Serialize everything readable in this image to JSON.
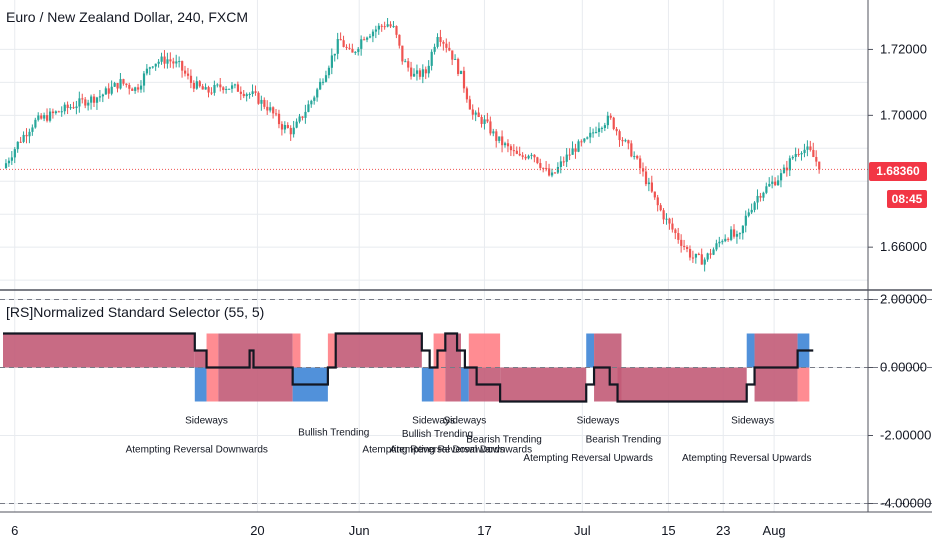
{
  "header": {
    "title": "Euro / New Zealand Dollar, 240, FXCM",
    "indicator_title": "[RS]Normalized Standard Selector (55, 5)"
  },
  "badges": {
    "last_price": "1.68360",
    "countdown": "08:45"
  },
  "colors": {
    "up": "#26a69a",
    "down": "#ef5350",
    "price_line": "#ef5350",
    "bull_zone": "#c25b77",
    "bear_zone": "#ff7f86",
    "blue_zone": "#3e85d6",
    "grid": "#e8ebef",
    "axis_text": "#131722",
    "badge": "#f23645"
  },
  "chart_data": [
    {
      "type": "candlestick",
      "title": "Euro / New Zealand Dollar, 240, FXCM",
      "xlim": [
        0,
        210
      ],
      "ylim": [
        1.647,
        1.735
      ],
      "y_ticks": [
        "1.72000",
        "1.70000",
        "1.66000"
      ],
      "x_ticks": [
        "6",
        "20",
        "Jun",
        "17",
        "Jul",
        "15",
        "23",
        "Aug"
      ],
      "last_price": 1.6836,
      "close_path": [
        [
          0,
          1.684
        ],
        [
          4,
          1.692
        ],
        [
          8,
          1.698
        ],
        [
          14,
          1.701
        ],
        [
          20,
          1.704
        ],
        [
          25,
          1.706
        ],
        [
          30,
          1.71
        ],
        [
          34,
          1.708
        ],
        [
          38,
          1.716
        ],
        [
          42,
          1.717
        ],
        [
          45,
          1.715
        ],
        [
          48,
          1.71
        ],
        [
          52,
          1.707
        ],
        [
          56,
          1.709
        ],
        [
          60,
          1.708
        ],
        [
          64,
          1.706
        ],
        [
          68,
          1.702
        ],
        [
          71,
          1.697
        ],
        [
          74,
          1.695
        ],
        [
          77,
          1.701
        ],
        [
          80,
          1.707
        ],
        [
          83,
          1.715
        ],
        [
          86,
          1.723
        ],
        [
          89,
          1.718
        ],
        [
          92,
          1.724
        ],
        [
          95,
          1.726
        ],
        [
          98,
          1.728
        ],
        [
          100,
          1.726
        ],
        [
          102,
          1.717
        ],
        [
          105,
          1.712
        ],
        [
          108,
          1.713
        ],
        [
          111,
          1.725
        ],
        [
          114,
          1.72
        ],
        [
          117,
          1.712
        ],
        [
          120,
          1.7
        ],
        [
          123,
          1.698
        ],
        [
          126,
          1.693
        ],
        [
          129,
          1.69
        ],
        [
          132,
          1.687
        ],
        [
          135,
          1.689
        ],
        [
          138,
          1.684
        ],
        [
          140,
          1.681
        ],
        [
          143,
          1.686
        ],
        [
          146,
          1.69
        ],
        [
          149,
          1.692
        ],
        [
          152,
          1.697
        ],
        [
          155,
          1.699
        ],
        [
          158,
          1.693
        ],
        [
          161,
          1.688
        ],
        [
          164,
          1.681
        ],
        [
          167,
          1.673
        ],
        [
          170,
          1.667
        ],
        [
          173,
          1.662
        ],
        [
          176,
          1.657
        ],
        [
          179,
          1.656
        ],
        [
          182,
          1.66
        ],
        [
          184,
          1.663
        ],
        [
          186,
          1.664
        ],
        [
          188,
          1.662
        ],
        [
          190,
          1.67
        ],
        [
          193,
          1.676
        ],
        [
          196,
          1.679
        ],
        [
          199,
          1.682
        ],
        [
          202,
          1.688
        ],
        [
          204,
          1.69
        ],
        [
          206,
          1.689
        ],
        [
          209,
          1.684
        ]
      ]
    },
    {
      "type": "step-area",
      "title": "[RS]Normalized Standard Selector (55, 5)",
      "ylim": [
        -4.25,
        2.25
      ],
      "y_ticks": [
        "2.00000",
        "0.00000",
        "-2.00000",
        "-4.00000"
      ],
      "levels": [
        2,
        0,
        -4
      ],
      "x_range": [
        0,
        210
      ],
      "value_steps": [
        [
          0,
          49,
          1
        ],
        [
          49,
          52,
          0.5
        ],
        [
          52,
          63,
          0
        ],
        [
          63,
          64,
          0.5
        ],
        [
          64,
          74,
          0
        ],
        [
          74,
          83,
          -0.5
        ],
        [
          83,
          85,
          0
        ],
        [
          85,
          107,
          1
        ],
        [
          107,
          109,
          0.5
        ],
        [
          109,
          111,
          0
        ],
        [
          111,
          113,
          0.5
        ],
        [
          113,
          116,
          1
        ],
        [
          116,
          118,
          0.5
        ],
        [
          118,
          121,
          0
        ],
        [
          121,
          127,
          -0.5
        ],
        [
          127,
          149,
          -1
        ],
        [
          149,
          151,
          -0.5
        ],
        [
          151,
          155,
          0
        ],
        [
          155,
          157,
          -0.5
        ],
        [
          157,
          190,
          -1
        ],
        [
          190,
          192,
          -0.5
        ],
        [
          192,
          203,
          0
        ],
        [
          203,
          206,
          0.5
        ],
        [
          206,
          207,
          0.5
        ]
      ],
      "zones": [
        [
          0,
          49,
          0,
          1,
          "bull"
        ],
        [
          49,
          52,
          0,
          0.5,
          "bull"
        ],
        [
          49,
          52,
          -1,
          0,
          "blue"
        ],
        [
          52,
          55,
          -1,
          1,
          "bear"
        ],
        [
          55,
          74,
          -1,
          1,
          "bull"
        ],
        [
          74,
          83,
          -1,
          0,
          "blue"
        ],
        [
          74,
          76,
          0,
          1,
          "bear"
        ],
        [
          83,
          85,
          0,
          1,
          "bear"
        ],
        [
          85,
          107,
          0,
          1,
          "bull"
        ],
        [
          107,
          110,
          -1,
          0,
          "blue"
        ],
        [
          110,
          113,
          -1,
          1,
          "bear"
        ],
        [
          113,
          117,
          -1,
          1,
          "bull"
        ],
        [
          117,
          119,
          -1,
          0,
          "blue"
        ],
        [
          119,
          127,
          0,
          1,
          "bear"
        ],
        [
          119,
          127,
          -1,
          0,
          "bull"
        ],
        [
          127,
          149,
          -1,
          0,
          "bull"
        ],
        [
          149,
          151,
          0,
          1,
          "blue"
        ],
        [
          151,
          158,
          -1,
          1,
          "bull"
        ],
        [
          157,
          190,
          -1,
          0,
          "bull"
        ],
        [
          190,
          192,
          0,
          1,
          "blue"
        ],
        [
          192,
          203,
          -1,
          1,
          "bull"
        ],
        [
          203,
          206,
          0,
          1,
          "blue"
        ],
        [
          203,
          206,
          -1,
          0,
          "bear"
        ]
      ],
      "annotations": [
        {
          "text": "Sideways",
          "x": 52,
          "y": -1.65
        },
        {
          "text": "Atempting Reversal Downwards",
          "x": 49.5,
          "y": -2.5
        },
        {
          "text": "Bullish Trending",
          "x": 84.5,
          "y": -2.0
        },
        {
          "text": "Sideways",
          "x": 110,
          "y": -1.65
        },
        {
          "text": "Sideways",
          "x": 118,
          "y": -1.65
        },
        {
          "text": "Bullish Trending",
          "x": 111,
          "y": -2.05
        },
        {
          "text": "Bearish Trending",
          "x": 128,
          "y": -2.2
        },
        {
          "text": "Atempting Reversal Downwards",
          "x": 110,
          "y": -2.5
        },
        {
          "text": "Atempting Reversal Downwards",
          "x": 117,
          "y": -2.5
        },
        {
          "text": "Sideways",
          "x": 152,
          "y": -1.65
        },
        {
          "text": "Bearish Trending",
          "x": 158.5,
          "y": -2.2
        },
        {
          "text": "Atempting Reversal Upwards",
          "x": 149.5,
          "y": -2.75
        },
        {
          "text": "Sideways",
          "x": 191.5,
          "y": -1.65
        },
        {
          "text": "Atempting Reversal Upwards",
          "x": 190,
          "y": -2.75
        }
      ]
    }
  ]
}
